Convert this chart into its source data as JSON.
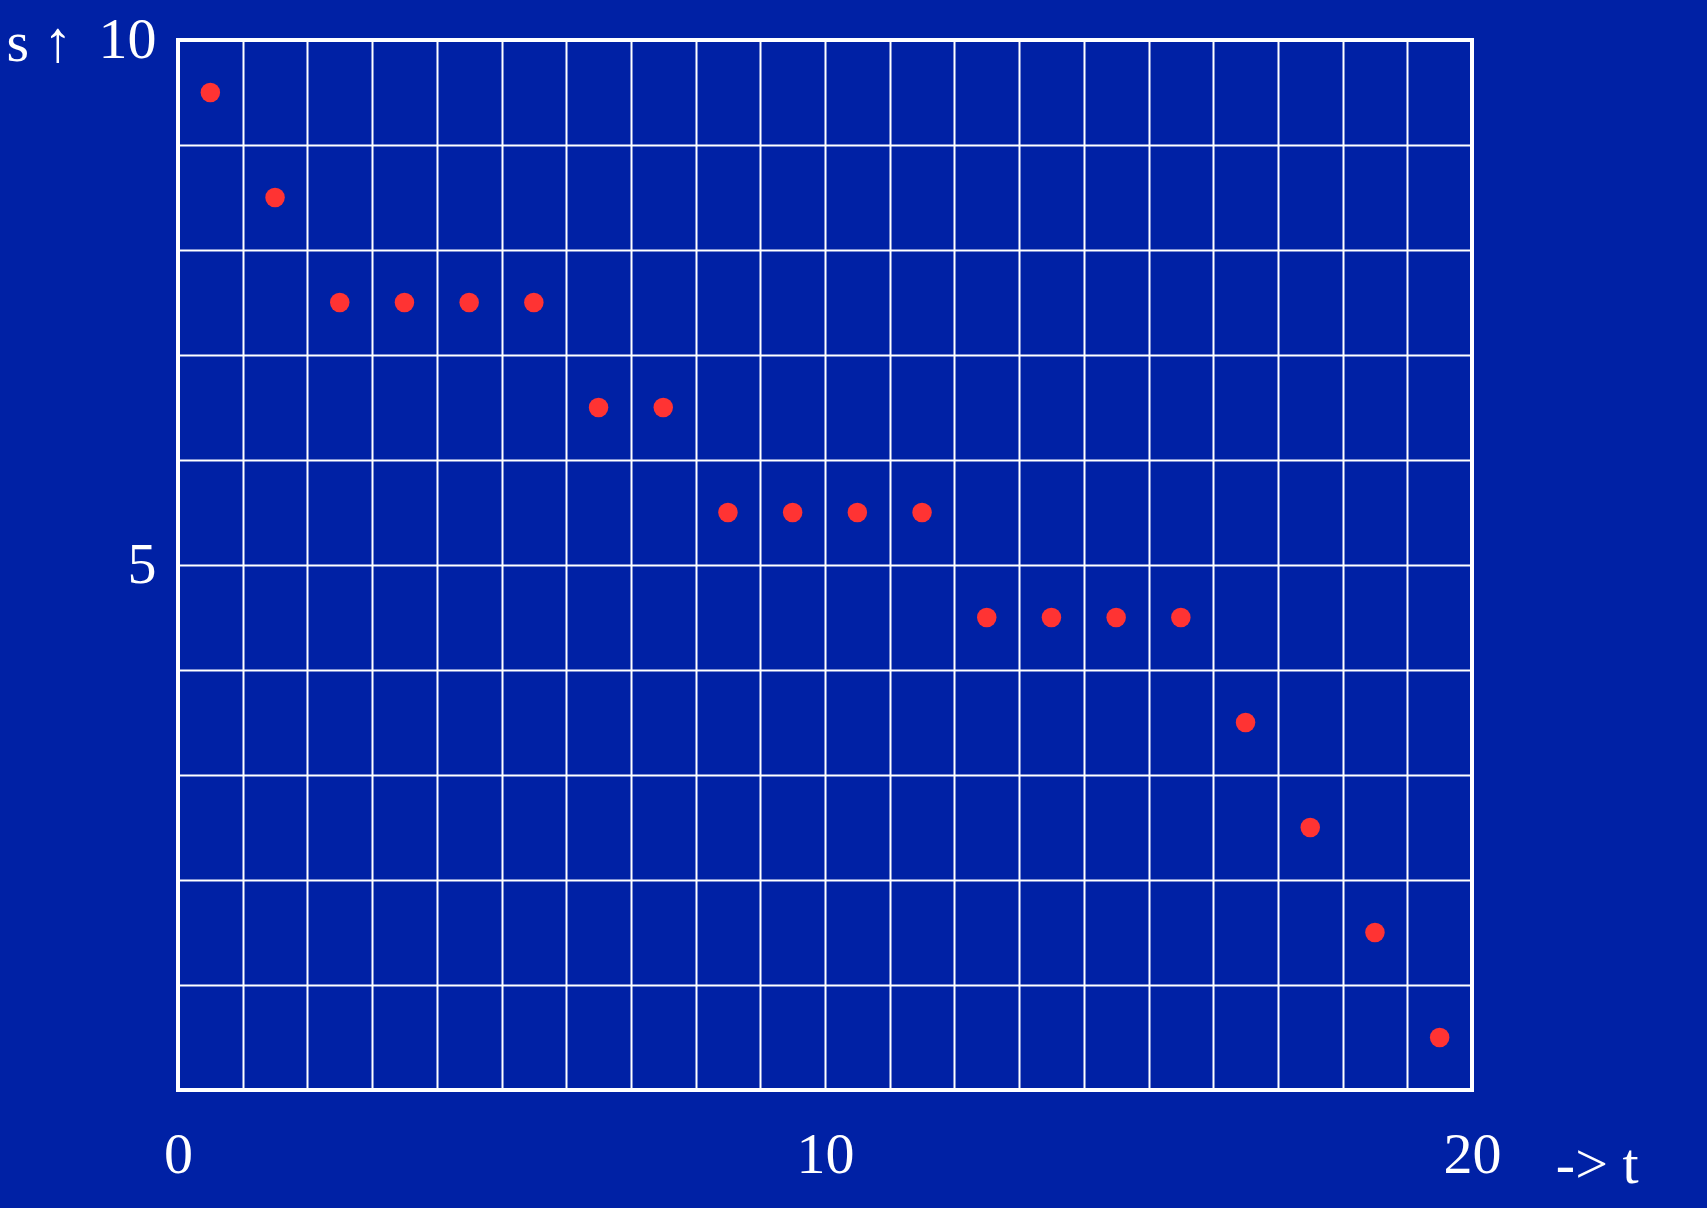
{
  "chart_data": {
    "type": "scatter",
    "xlabel": "-> t",
    "ylabel": "s ↑",
    "x": [
      0.5,
      1.5,
      2.5,
      3.5,
      4.5,
      5.5,
      6.5,
      7.5,
      8.5,
      9.5,
      10.5,
      11.5,
      12.5,
      13.5,
      14.5,
      15.5,
      16.5,
      17.5,
      18.5,
      19.5
    ],
    "series": [
      {
        "color": "#ff3333",
        "values": [
          9.5,
          8.5,
          7.5,
          7.5,
          7.5,
          7.5,
          6.5,
          6.5,
          5.5,
          5.5,
          5.5,
          5.5,
          4.5,
          4.5,
          4.5,
          4.5,
          3.5,
          2.5,
          1.5,
          0.5
        ]
      }
    ],
    "xlim": [
      0,
      20
    ],
    "xticks": [
      0,
      {
        "value": 1,
        "label": null
      },
      {
        "value": 2,
        "label": null
      },
      {
        "value": 3,
        "label": null
      },
      {
        "value": 4,
        "label": null
      },
      {
        "value": 5,
        "label": null
      },
      {
        "value": 6,
        "label": null
      },
      {
        "value": 7,
        "label": null
      },
      {
        "value": 8,
        "label": null
      },
      {
        "value": 9,
        "label": null
      },
      10,
      {
        "value": 11,
        "label": null
      },
      {
        "value": 12,
        "label": null
      },
      {
        "value": 13,
        "label": null
      },
      {
        "value": 14,
        "label": null
      },
      {
        "value": 15,
        "label": null
      },
      {
        "value": 16,
        "label": null
      },
      {
        "value": 17,
        "label": null
      },
      {
        "value": 18,
        "label": null
      },
      {
        "value": 19,
        "label": null
      },
      20
    ],
    "ylim": [
      0,
      10
    ],
    "yticks": [
      {
        "value": 0,
        "label": null
      },
      {
        "value": 1,
        "label": null
      },
      {
        "value": 2,
        "label": null
      },
      {
        "value": 3,
        "label": null
      },
      {
        "value": 4,
        "label": null
      },
      5,
      {
        "value": 6,
        "label": null
      },
      {
        "value": 7,
        "label": null
      },
      {
        "value": 8,
        "label": null
      },
      {
        "value": 9,
        "label": null
      },
      10
    ],
    "grid": true,
    "marker": "circle"
  }
}
